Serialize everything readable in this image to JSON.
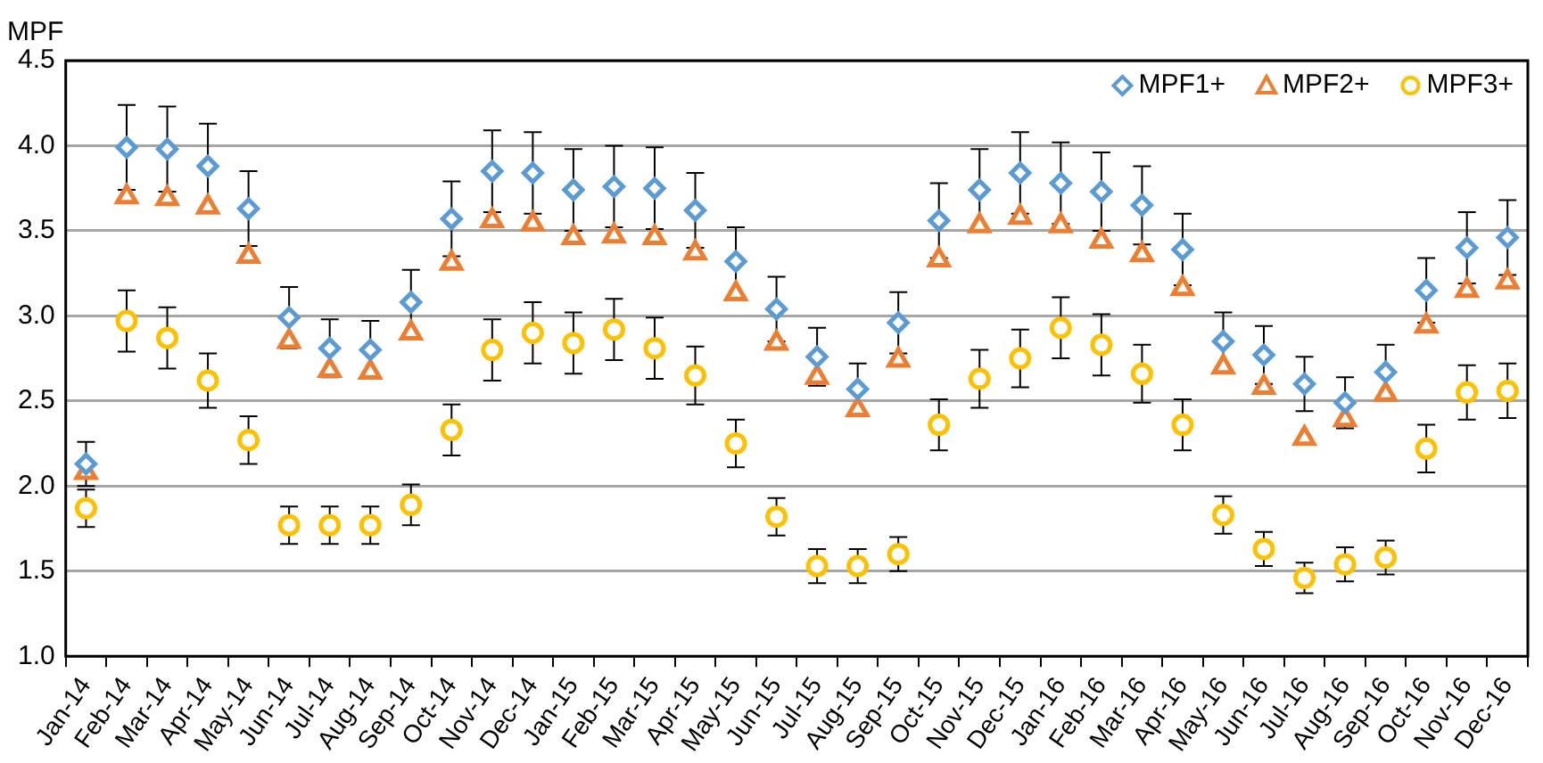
{
  "chart_data": {
    "type": "scatter",
    "ylabel": "MPF",
    "categories": [
      "Jan-14",
      "Feb-14",
      "Mar-14",
      "Apr-14",
      "May-14",
      "Jun-14",
      "Jul-14",
      "Aug-14",
      "Sep-14",
      "Oct-14",
      "Nov-14",
      "Dec-14",
      "Jan-15",
      "Feb-15",
      "Mar-15",
      "Apr-15",
      "May-15",
      "Jun-15",
      "Jul-15",
      "Aug-15",
      "Sep-15",
      "Oct-15",
      "Nov-15",
      "Dec-15",
      "Jan-16",
      "Feb-16",
      "Mar-16",
      "Apr-16",
      "May-16",
      "Jun-16",
      "Jul-16",
      "Aug-16",
      "Sep-16",
      "Oct-16",
      "Nov-16",
      "Dec-16"
    ],
    "series": [
      {
        "name": "MPF1+",
        "color": "#5b9bd5",
        "marker": "diamond",
        "values": [
          2.13,
          3.99,
          3.98,
          3.88,
          3.63,
          2.99,
          2.81,
          2.8,
          3.08,
          3.57,
          3.85,
          3.84,
          3.74,
          3.76,
          3.75,
          3.62,
          3.32,
          3.04,
          2.76,
          2.57,
          2.96,
          3.56,
          3.74,
          3.84,
          3.78,
          3.73,
          3.65,
          3.39,
          2.85,
          2.77,
          2.6,
          2.49,
          2.67,
          3.15,
          3.4,
          3.46
        ],
        "errors": [
          0.13,
          0.25,
          0.25,
          0.25,
          0.22,
          0.18,
          0.17,
          0.17,
          0.19,
          0.22,
          0.24,
          0.24,
          0.24,
          0.24,
          0.24,
          0.22,
          0.2,
          0.19,
          0.17,
          0.15,
          0.18,
          0.22,
          0.24,
          0.24,
          0.24,
          0.23,
          0.23,
          0.21,
          0.17,
          0.17,
          0.16,
          0.15,
          0.16,
          0.19,
          0.21,
          0.22
        ]
      },
      {
        "name": "MPF2+",
        "color": "#ed7d31",
        "marker": "triangle",
        "values": [
          2.08,
          3.7,
          3.69,
          3.64,
          3.35,
          2.85,
          2.68,
          2.67,
          2.9,
          3.31,
          3.56,
          3.54,
          3.46,
          3.47,
          3.46,
          3.37,
          3.13,
          2.84,
          2.64,
          2.45,
          2.74,
          3.33,
          3.53,
          3.58,
          3.53,
          3.44,
          3.36,
          3.16,
          2.7,
          2.58,
          2.28,
          2.39,
          2.54,
          2.94,
          3.15,
          3.2
        ]
      },
      {
        "name": "MPF3+",
        "color": "#ffc000",
        "marker": "circle",
        "values": [
          1.87,
          2.97,
          2.87,
          2.62,
          2.27,
          1.77,
          1.77,
          1.77,
          1.89,
          2.33,
          2.8,
          2.9,
          2.84,
          2.92,
          2.81,
          2.65,
          2.25,
          1.82,
          1.53,
          1.53,
          1.6,
          2.36,
          2.63,
          2.75,
          2.93,
          2.83,
          2.66,
          2.36,
          1.83,
          1.63,
          1.46,
          1.54,
          1.58,
          2.22,
          2.55,
          2.56
        ],
        "errors": [
          0.11,
          0.18,
          0.18,
          0.16,
          0.14,
          0.11,
          0.11,
          0.11,
          0.12,
          0.15,
          0.18,
          0.18,
          0.18,
          0.18,
          0.18,
          0.17,
          0.14,
          0.11,
          0.1,
          0.1,
          0.1,
          0.15,
          0.17,
          0.17,
          0.18,
          0.18,
          0.17,
          0.15,
          0.11,
          0.1,
          0.09,
          0.1,
          0.1,
          0.14,
          0.16,
          0.16
        ]
      }
    ],
    "ylim": [
      1.0,
      4.5
    ],
    "yticks": [
      {
        "value": 1.0,
        "label": "1.0"
      },
      {
        "value": 1.5,
        "label": "1.5"
      },
      {
        "value": 2.0,
        "label": "2.0"
      },
      {
        "value": 2.5,
        "label": "2.5"
      },
      {
        "value": 3.0,
        "label": "3.0"
      },
      {
        "value": 3.5,
        "label": "3.5"
      },
      {
        "value": 4.0,
        "label": "4.0"
      },
      {
        "value": 4.5,
        "label": "4.5"
      }
    ],
    "grid": "y",
    "legend": "top right"
  }
}
